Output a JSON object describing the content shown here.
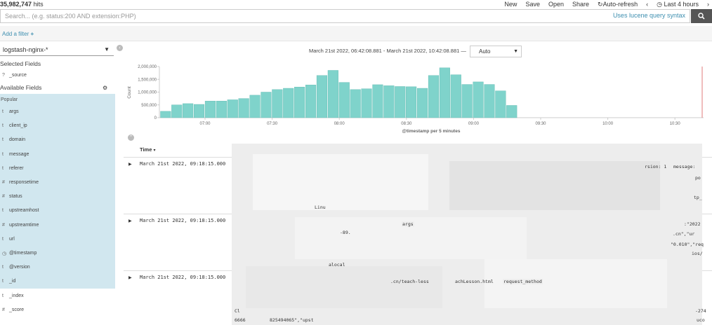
{
  "topbar": {
    "hits_count": "35,982,747",
    "hits_label": "hits",
    "menu": {
      "new": "New",
      "save": "Save",
      "open": "Open",
      "share": "Share",
      "auto_refresh": "Auto-refresh",
      "time_range": "Last 4 hours"
    }
  },
  "search": {
    "placeholder": "Search... (e.g. status:200 AND extension:PHP)",
    "lucene_link": "Uses lucene query syntax"
  },
  "filter": {
    "add_filter": "Add a filter"
  },
  "sidebar": {
    "index_pattern": "logstash-nginx-*",
    "selected_fields_title": "Selected Fields",
    "selected_fields": [
      {
        "type": "?",
        "name": "_source"
      }
    ],
    "available_fields_title": "Available Fields",
    "popular_title": "Popular",
    "popular_fields": [
      {
        "type": "t",
        "name": "args"
      },
      {
        "type": "t",
        "name": "client_ip"
      },
      {
        "type": "t",
        "name": "domain"
      },
      {
        "type": "t",
        "name": "message"
      },
      {
        "type": "t",
        "name": "referer"
      },
      {
        "type": "#",
        "name": "responsetime"
      },
      {
        "type": "#",
        "name": "status"
      },
      {
        "type": "t",
        "name": "upstreamhost"
      },
      {
        "type": "#",
        "name": "upstreamtime"
      },
      {
        "type": "t",
        "name": "url"
      }
    ],
    "other_fields": [
      {
        "type": "◷",
        "name": "@timestamp"
      },
      {
        "type": "t",
        "name": "@version"
      },
      {
        "type": "t",
        "name": "_id"
      },
      {
        "type": "t",
        "name": "_index"
      },
      {
        "type": "#",
        "name": "_score"
      }
    ]
  },
  "histogram": {
    "range_text": "March 21st 2022, 06:42:08.881 - March 21st 2022, 10:42:08.881 —",
    "interval": "Auto"
  },
  "chart_data": {
    "type": "bar",
    "title": "",
    "xlabel": "@timestamp per 5 minutes",
    "ylabel": "Count",
    "ylim": [
      0,
      2000000
    ],
    "yticks": [
      "0",
      "500,000",
      "1,000,000",
      "1,500,000",
      "2,000,000"
    ],
    "xticks": [
      "07:00",
      "07:30",
      "08:00",
      "08:30",
      "09:00",
      "09:30",
      "10:00",
      "10:30"
    ],
    "bar_color": "#7fd3cb",
    "values": [
      250000,
      500000,
      550000,
      520000,
      650000,
      650000,
      700000,
      750000,
      880000,
      1000000,
      1100000,
      1150000,
      1200000,
      1280000,
      1650000,
      1850000,
      1380000,
      1100000,
      1130000,
      1290000,
      1250000,
      1220000,
      1210000,
      1150000,
      1650000,
      1950000,
      1680000,
      1300000,
      1400000,
      1300000,
      1050000,
      480000
    ]
  },
  "documents": {
    "time_column": "Time",
    "rows": [
      {
        "time": "March 21st 2022, 09:18:15.000",
        "fragments": [
          {
            "text": "rsion: 1",
            "kw": false
          },
          {
            "text": "message:",
            "kw": true
          },
          {
            "text": "Linu",
            "kw": false
          },
          {
            "text": "po",
            "kw": false
          },
          {
            "text": "tp_",
            "kw": false
          }
        ]
      },
      {
        "time": "March 21st 2022, 09:18:15.000",
        "fragments": [
          {
            "text": "-89.",
            "kw": false
          },
          {
            "text": "args",
            "kw": true
          },
          {
            "text": ":\"2022",
            "kw": false
          },
          {
            "text": ".cn\",\"ur",
            "kw": false
          },
          {
            "text": "\"0.010\",\"req",
            "kw": false
          },
          {
            "text": "ios/",
            "kw": false
          },
          {
            "text": "alocal",
            "kw": false
          }
        ]
      },
      {
        "time": "March 21st 2022, 09:18:15.000",
        "fragments": [
          {
            "text": ".cn/teach-less",
            "kw": false
          },
          {
            "text": "achLesson.html",
            "kw": false
          },
          {
            "text": "request_method",
            "kw": true
          },
          {
            "text": "825494065\",\"upst",
            "kw": false
          },
          {
            "text": "6666",
            "kw": false
          },
          {
            "text": "Cl",
            "kw": false
          },
          {
            "text": "-274",
            "kw": false
          },
          {
            "text": "uco",
            "kw": false
          }
        ]
      }
    ]
  }
}
